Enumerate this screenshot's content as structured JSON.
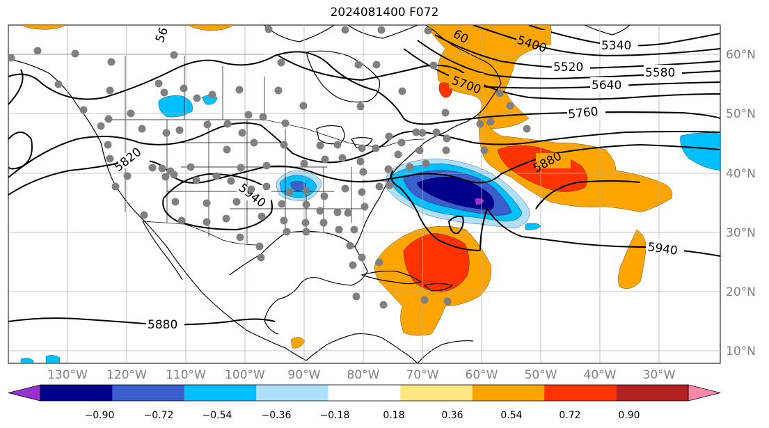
{
  "title": "2024081400 F072",
  "lon_labels": [
    "130°W",
    "120°W",
    "110°W",
    "100°W",
    "90°W",
    "80°W",
    "70°W",
    "60°W",
    "50°W",
    "40°W",
    "30°W"
  ],
  "lat_labels": [
    "60°N",
    "50°N",
    "40°N",
    "30°N",
    "20°N",
    "10°N"
  ],
  "colorbar": {
    "ticks": [
      "−0.90",
      "−0.72",
      "−0.54",
      "−0.36",
      "−0.18",
      "0.18",
      "0.36",
      "0.54",
      "0.72",
      "0.90"
    ],
    "colors": [
      "#9932cc",
      "#00008b",
      "#3a5fcd",
      "#00bfff",
      "#b0e0ff",
      "#ffffff",
      "#ffe680",
      "#ffa500",
      "#ff3300",
      "#b22222",
      "#ff88aa"
    ]
  },
  "contour_labels": [
    "5340",
    "5400",
    "5520",
    "5580",
    "5640",
    "5700",
    "5760",
    "5820",
    "5880",
    "5940",
    "5880",
    "5940",
    "5880",
    "56",
    "60"
  ],
  "fill_colors": {
    "orange": "#ffa500",
    "red": "#ff3300",
    "purple": "#9932cc",
    "navy": "#00008b",
    "royal": "#3a5fcd",
    "sky": "#00bfff",
    "light": "#b0e0ff"
  },
  "station_color": "#808080"
}
